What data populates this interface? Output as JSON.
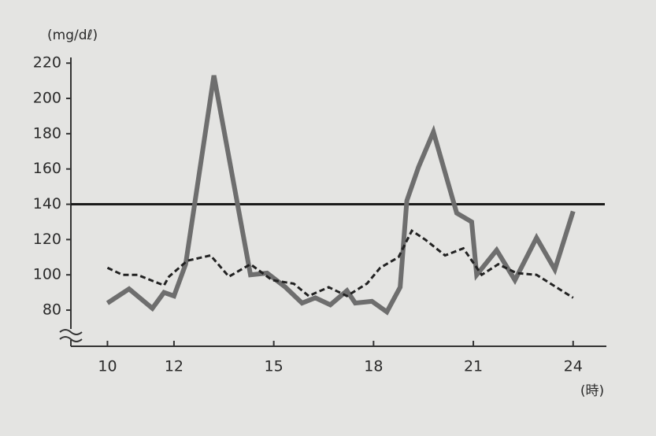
{
  "chart_data": {
    "type": "line",
    "y_label": "(mg/dℓ)",
    "x_label": "(時)",
    "xlim": [
      8.9,
      25
    ],
    "xticks": [
      10,
      12,
      15,
      18,
      21,
      24
    ],
    "ylim": [
      59.5,
      225
    ],
    "yticks": [
      80,
      100,
      120,
      140,
      160,
      180,
      200,
      220
    ],
    "reference_line": 140,
    "axis_break": true,
    "series": [
      {
        "color": "#6e6e6e",
        "style": "solid",
        "width": 6,
        "x": [
          10,
          10.65,
          11.35,
          11.7,
          12,
          12.35,
          13.2,
          14.3,
          14.8,
          15.35,
          15.85,
          16.25,
          16.7,
          17.2,
          17.45,
          17.95,
          18.4,
          18.8,
          19,
          19.35,
          19.8,
          20.5,
          20.95,
          21.1,
          21.7,
          22.25,
          22.9,
          23.45,
          24
        ],
        "values": [
          84,
          92,
          81,
          90,
          88,
          106,
          213,
          100,
          101,
          93,
          84,
          87,
          83,
          91,
          84,
          85,
          79,
          93,
          142,
          161,
          181,
          135,
          130,
          100,
          114,
          97,
          121,
          103,
          136
        ]
      },
      {
        "color": "#222222",
        "style": "dashed",
        "width": 3,
        "x": [
          10,
          10.45,
          10.9,
          11.7,
          11.85,
          12.4,
          13.1,
          13.65,
          14.3,
          14.95,
          15.6,
          16.05,
          16.65,
          17.2,
          17.8,
          18.2,
          18.75,
          19.15,
          19.55,
          20.15,
          20.7,
          21.25,
          21.75,
          22.3,
          22.9,
          24
        ],
        "values": [
          104,
          100,
          100,
          94,
          99,
          108,
          111,
          99,
          106,
          97,
          95,
          88,
          93,
          88,
          95,
          104,
          110,
          125,
          120,
          111,
          115,
          100,
          106,
          101,
          100,
          87
        ]
      }
    ]
  }
}
